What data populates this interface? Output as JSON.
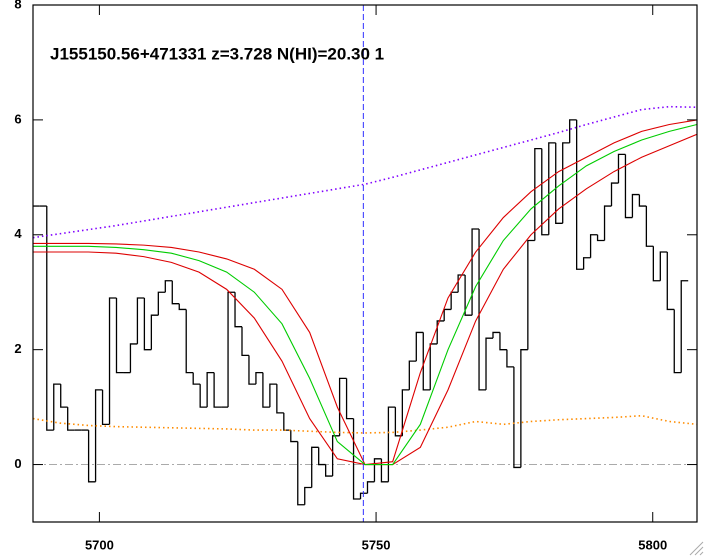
{
  "chart_data": {
    "type": "line",
    "title": "J155150.56+471331 z=3.728 N(HI)=20.30 1",
    "xlim": [
      5688,
      5808
    ],
    "ylim": [
      -1,
      8
    ],
    "xticks": [
      5700,
      5750,
      5800
    ],
    "yticks": [
      0,
      2,
      4,
      6,
      8
    ],
    "reference_line": 5747.7,
    "series": [
      {
        "color": "#000000",
        "style": "step",
        "x": [
          5688.6,
          5689.86,
          5691.12,
          5692.38,
          5693.64,
          5694.9,
          5696.16,
          5697.42,
          5698.68,
          5699.94,
          5701.2,
          5702.46,
          5703.72,
          5704.98,
          5706.24,
          5707.5,
          5708.76,
          5710.02,
          5711.28,
          5712.54,
          5713.8,
          5715.06,
          5716.32,
          5717.58,
          5718.84,
          5720.1,
          5721.36,
          5722.62,
          5723.88,
          5725.14,
          5726.4,
          5727.66,
          5728.92,
          5730.18,
          5731.44,
          5732.7,
          5733.96,
          5735.22,
          5736.48,
          5737.74,
          5739.0,
          5740.26,
          5741.52,
          5742.78,
          5744.04,
          5745.3,
          5746.56,
          5747.82,
          5749.08,
          5750.34,
          5751.6,
          5752.86,
          5754.12,
          5755.38,
          5756.64,
          5757.9,
          5759.16,
          5760.42,
          5761.68,
          5762.94,
          5764.2,
          5765.46,
          5766.72,
          5767.98,
          5769.24,
          5770.5,
          5771.76,
          5773.02,
          5774.28,
          5775.54,
          5776.8,
          5778.06,
          5779.32,
          5780.58,
          5781.84,
          5783.1,
          5784.36,
          5785.62,
          5786.88,
          5788.14,
          5789.4,
          5790.66,
          5791.92,
          5793.18,
          5794.44,
          5795.7,
          5796.96,
          5798.22,
          5799.48,
          5800.74,
          5802.0,
          5803.26,
          5804.52,
          5805.78
        ],
        "values": [
          4.5,
          4.5,
          0.6,
          1.4,
          1.0,
          0.6,
          0.6,
          0.6,
          -0.3,
          1.3,
          0.7,
          2.9,
          1.6,
          1.6,
          2.1,
          2.9,
          2.0,
          2.6,
          3.0,
          3.2,
          2.8,
          2.7,
          1.6,
          1.4,
          1.0,
          1.6,
          1.0,
          1.0,
          3.0,
          2.4,
          1.9,
          1.4,
          1.6,
          1.0,
          1.4,
          0.9,
          0.6,
          0.4,
          -0.7,
          -0.4,
          0.3,
          0,
          -0.2,
          0.5,
          1.5,
          0.8,
          -0.6,
          -0.5,
          -0.3,
          0.1,
          -0.3,
          1.0,
          0.5,
          1.3,
          1.8,
          2.3,
          1.3,
          2.1,
          2.5,
          2.7,
          3.0,
          3.3,
          2.6,
          4.1,
          1.3,
          2.2,
          2.3,
          2.0,
          1.7,
          -0.05,
          2.0,
          3.9,
          5.5,
          4.0,
          5.6,
          4.2,
          5.6,
          6.0,
          3.4,
          3.6,
          4.0,
          3.9,
          4.5,
          4.9,
          5.4,
          4.3,
          4.7,
          4.5,
          3.8,
          3.2,
          3.7,
          2.7,
          1.6,
          3.2
        ]
      },
      {
        "color": "#8000ff",
        "style": "dotted",
        "x": [
          5688,
          5693,
          5698,
          5703,
          5708,
          5713,
          5718,
          5723,
          5728,
          5733,
          5738,
          5743,
          5748,
          5753,
          5758,
          5763,
          5768,
          5773,
          5778,
          5783,
          5788,
          5793,
          5798,
          5803,
          5808
        ],
        "values": [
          3.95,
          4.02,
          4.09,
          4.16,
          4.24,
          4.32,
          4.4,
          4.48,
          4.56,
          4.64,
          4.72,
          4.8,
          4.88,
          5.0,
          5.13,
          5.26,
          5.39,
          5.52,
          5.65,
          5.78,
          5.92,
          6.05,
          6.18,
          6.23,
          6.22
        ]
      },
      {
        "color": "#ff8c00",
        "style": "dotted",
        "x": [
          5688,
          5693,
          5698,
          5703,
          5708,
          5713,
          5718,
          5723,
          5728,
          5733,
          5738,
          5743,
          5748,
          5753,
          5758,
          5763,
          5768,
          5773,
          5778,
          5783,
          5788,
          5793,
          5798,
          5803,
          5808
        ],
        "values": [
          0.8,
          0.72,
          0.68,
          0.66,
          0.65,
          0.64,
          0.63,
          0.62,
          0.6,
          0.6,
          0.58,
          0.56,
          0.55,
          0.56,
          0.6,
          0.65,
          0.75,
          0.7,
          0.75,
          0.78,
          0.8,
          0.82,
          0.85,
          0.75,
          0.7
        ]
      },
      {
        "color": "#dd0000",
        "style": "solid",
        "x": [
          5688,
          5693,
          5698,
          5703,
          5708,
          5713,
          5718,
          5723,
          5728,
          5733,
          5738,
          5743,
          5748,
          5753,
          5758,
          5763,
          5768,
          5773,
          5778,
          5783,
          5788,
          5793,
          5798,
          5803,
          5808
        ],
        "values": [
          3.85,
          3.85,
          3.85,
          3.84,
          3.82,
          3.78,
          3.7,
          3.58,
          3.4,
          3.05,
          2.3,
          1.0,
          0.0,
          0.05,
          1.6,
          2.9,
          3.7,
          4.3,
          4.75,
          5.1,
          5.35,
          5.6,
          5.8,
          5.92,
          6.0
        ]
      },
      {
        "color": "#dd0000",
        "style": "solid",
        "x": [
          5688,
          5693,
          5698,
          5703,
          5708,
          5713,
          5718,
          5723,
          5728,
          5733,
          5738,
          5743,
          5748,
          5753,
          5758,
          5763,
          5768,
          5773,
          5778,
          5783,
          5788,
          5793,
          5798,
          5803,
          5808
        ],
        "values": [
          3.7,
          3.7,
          3.7,
          3.68,
          3.62,
          3.52,
          3.35,
          3.05,
          2.55,
          1.8,
          0.8,
          0.1,
          0.0,
          0.0,
          0.3,
          1.3,
          2.5,
          3.4,
          4.0,
          4.45,
          4.8,
          5.1,
          5.35,
          5.55,
          5.75
        ]
      },
      {
        "color": "#00cc00",
        "style": "solid",
        "x": [
          5688,
          5693,
          5698,
          5703,
          5708,
          5713,
          5718,
          5723,
          5728,
          5733,
          5738,
          5743,
          5748,
          5753,
          5758,
          5763,
          5768,
          5773,
          5778,
          5783,
          5788,
          5793,
          5798,
          5803,
          5808
        ],
        "values": [
          3.8,
          3.8,
          3.8,
          3.78,
          3.74,
          3.68,
          3.55,
          3.35,
          3.0,
          2.45,
          1.5,
          0.4,
          0.0,
          0.0,
          0.7,
          2.0,
          3.1,
          3.9,
          4.45,
          4.85,
          5.2,
          5.45,
          5.65,
          5.8,
          5.92
        ]
      }
    ]
  }
}
